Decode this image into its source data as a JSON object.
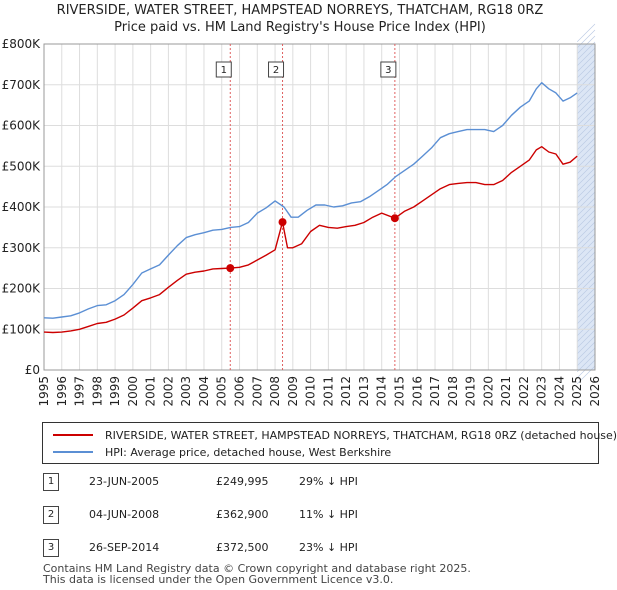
{
  "title_line1": "RIVERSIDE, WATER STREET, HAMPSTEAD NORREYS, THATCHAM, RG18 0RZ",
  "title_line2": "Price paid vs. HM Land Registry's House Price Index (HPI)",
  "colors": {
    "price": "#cc0000",
    "hpi": "#5b8fd4",
    "grid": "#dddddd",
    "vline": "#e06060",
    "shade": "#dce6f5"
  },
  "chart_data": {
    "type": "line",
    "title": "Price paid vs. HM Land Registry's House Price Index (HPI)",
    "xlim": [
      1995,
      2026
    ],
    "ylim": [
      0,
      800000
    ],
    "x_ticks": [
      1995,
      1996,
      1997,
      1998,
      1999,
      2000,
      2001,
      2002,
      2003,
      2004,
      2005,
      2006,
      2007,
      2008,
      2009,
      2010,
      2011,
      2012,
      2013,
      2014,
      2015,
      2016,
      2017,
      2018,
      2019,
      2020,
      2021,
      2022,
      2023,
      2024,
      2025,
      2026
    ],
    "y_ticks": [
      0,
      100000,
      200000,
      300000,
      400000,
      500000,
      600000,
      700000,
      800000
    ],
    "y_tick_labels": [
      "£0",
      "£100K",
      "£200K",
      "£300K",
      "£400K",
      "£500K",
      "£600K",
      "£700K",
      "£800K"
    ],
    "grid": true,
    "future_shading_from": 2025.0,
    "series": [
      {
        "name": "HPI: Average price, detached house, West Berkshire",
        "color": "#5b8fd4",
        "points": [
          [
            1995.0,
            128000
          ],
          [
            1995.5,
            127000
          ],
          [
            1996.0,
            130000
          ],
          [
            1996.5,
            133000
          ],
          [
            1997.0,
            140000
          ],
          [
            1997.5,
            150000
          ],
          [
            1998.0,
            158000
          ],
          [
            1998.5,
            160000
          ],
          [
            1999.0,
            170000
          ],
          [
            1999.5,
            185000
          ],
          [
            2000.0,
            210000
          ],
          [
            2000.5,
            238000
          ],
          [
            2001.0,
            248000
          ],
          [
            2001.5,
            258000
          ],
          [
            2002.0,
            282000
          ],
          [
            2002.5,
            305000
          ],
          [
            2003.0,
            325000
          ],
          [
            2003.5,
            332000
          ],
          [
            2004.0,
            337000
          ],
          [
            2004.5,
            343000
          ],
          [
            2005.0,
            345000
          ],
          [
            2005.5,
            350000
          ],
          [
            2006.0,
            352000
          ],
          [
            2006.5,
            362000
          ],
          [
            2007.0,
            385000
          ],
          [
            2007.5,
            398000
          ],
          [
            2008.0,
            415000
          ],
          [
            2008.5,
            400000
          ],
          [
            2008.9,
            375000
          ],
          [
            2009.3,
            375000
          ],
          [
            2009.8,
            392000
          ],
          [
            2010.3,
            405000
          ],
          [
            2010.8,
            405000
          ],
          [
            2011.3,
            400000
          ],
          [
            2011.8,
            403000
          ],
          [
            2012.3,
            410000
          ],
          [
            2012.8,
            413000
          ],
          [
            2013.3,
            425000
          ],
          [
            2013.8,
            440000
          ],
          [
            2014.3,
            455000
          ],
          [
            2014.8,
            475000
          ],
          [
            2015.3,
            490000
          ],
          [
            2015.8,
            505000
          ],
          [
            2016.3,
            525000
          ],
          [
            2016.8,
            545000
          ],
          [
            2017.3,
            570000
          ],
          [
            2017.8,
            580000
          ],
          [
            2018.3,
            585000
          ],
          [
            2018.8,
            590000
          ],
          [
            2019.3,
            590000
          ],
          [
            2019.8,
            590000
          ],
          [
            2020.3,
            585000
          ],
          [
            2020.8,
            600000
          ],
          [
            2021.3,
            625000
          ],
          [
            2021.8,
            645000
          ],
          [
            2022.3,
            660000
          ],
          [
            2022.7,
            690000
          ],
          [
            2023.0,
            705000
          ],
          [
            2023.4,
            690000
          ],
          [
            2023.8,
            680000
          ],
          [
            2024.2,
            660000
          ],
          [
            2024.6,
            668000
          ],
          [
            2025.0,
            680000
          ]
        ]
      },
      {
        "name": "RIVERSIDE, WATER STREET, HAMPSTEAD NORREYS, THATCHAM, RG18 0RZ (detached house)",
        "color": "#cc0000",
        "points": [
          [
            1995.0,
            93000
          ],
          [
            1995.5,
            92000
          ],
          [
            1996.0,
            93000
          ],
          [
            1996.5,
            96000
          ],
          [
            1997.0,
            100000
          ],
          [
            1997.5,
            107000
          ],
          [
            1998.0,
            114000
          ],
          [
            1998.5,
            117000
          ],
          [
            1999.0,
            125000
          ],
          [
            1999.5,
            135000
          ],
          [
            2000.0,
            152000
          ],
          [
            2000.5,
            170000
          ],
          [
            2001.0,
            177000
          ],
          [
            2001.5,
            185000
          ],
          [
            2002.0,
            203000
          ],
          [
            2002.5,
            220000
          ],
          [
            2003.0,
            235000
          ],
          [
            2003.5,
            240000
          ],
          [
            2004.0,
            243000
          ],
          [
            2004.5,
            248000
          ],
          [
            2005.0,
            249000
          ],
          [
            2005.48,
            249995
          ],
          [
            2006.0,
            252000
          ],
          [
            2006.5,
            258000
          ],
          [
            2007.0,
            270000
          ],
          [
            2007.5,
            282000
          ],
          [
            2008.0,
            295000
          ],
          [
            2008.42,
            362900
          ],
          [
            2008.7,
            300000
          ],
          [
            2009.0,
            300000
          ],
          [
            2009.5,
            310000
          ],
          [
            2010.0,
            340000
          ],
          [
            2010.5,
            355000
          ],
          [
            2011.0,
            350000
          ],
          [
            2011.5,
            348000
          ],
          [
            2012.0,
            352000
          ],
          [
            2012.5,
            355000
          ],
          [
            2013.0,
            362000
          ],
          [
            2013.5,
            375000
          ],
          [
            2014.0,
            385000
          ],
          [
            2014.74,
            372500
          ],
          [
            2015.3,
            390000
          ],
          [
            2015.8,
            400000
          ],
          [
            2016.3,
            415000
          ],
          [
            2016.8,
            430000
          ],
          [
            2017.3,
            445000
          ],
          [
            2017.8,
            455000
          ],
          [
            2018.3,
            458000
          ],
          [
            2018.8,
            460000
          ],
          [
            2019.3,
            460000
          ],
          [
            2019.8,
            455000
          ],
          [
            2020.3,
            455000
          ],
          [
            2020.8,
            465000
          ],
          [
            2021.3,
            485000
          ],
          [
            2021.8,
            500000
          ],
          [
            2022.3,
            515000
          ],
          [
            2022.7,
            540000
          ],
          [
            2023.0,
            548000
          ],
          [
            2023.4,
            535000
          ],
          [
            2023.8,
            530000
          ],
          [
            2024.2,
            505000
          ],
          [
            2024.6,
            510000
          ],
          [
            2025.0,
            525000
          ]
        ]
      }
    ],
    "sales": [
      {
        "label": "1",
        "x": 2005.48,
        "y": 249995
      },
      {
        "label": "2",
        "x": 2008.42,
        "y": 362900
      },
      {
        "label": "3",
        "x": 2014.74,
        "y": 372500
      }
    ]
  },
  "legend": {
    "price_label": "RIVERSIDE, WATER STREET, HAMPSTEAD NORREYS, THATCHAM, RG18 0RZ (detached house)",
    "hpi_label": "HPI: Average price, detached house, West Berkshire"
  },
  "transactions": [
    {
      "num": "1",
      "date": "23-JUN-2005",
      "price": "£249,995",
      "hpi": "29% ↓ HPI"
    },
    {
      "num": "2",
      "date": "04-JUN-2008",
      "price": "£362,900",
      "hpi": "11% ↓ HPI"
    },
    {
      "num": "3",
      "date": "26-SEP-2014",
      "price": "£372,500",
      "hpi": "23% ↓ HPI"
    }
  ],
  "footer_line1": "Contains HM Land Registry data © Crown copyright and database right 2025.",
  "footer_line2": "This data is licensed under the Open Government Licence v3.0."
}
